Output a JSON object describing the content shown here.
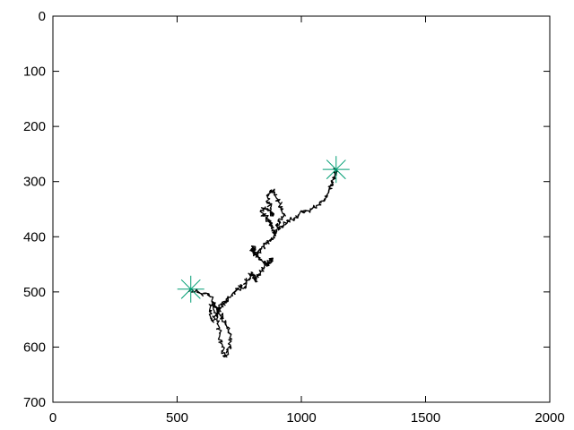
{
  "chart_data": {
    "type": "line",
    "title": "",
    "xlabel": "",
    "ylabel": "",
    "xlim": [
      0,
      2000
    ],
    "ylim": [
      0,
      700
    ],
    "y_inverted": true,
    "grid": false,
    "legend": "none",
    "x_ticks": [
      "0",
      "500",
      "1000",
      "1500",
      "2000"
    ],
    "y_ticks": [
      "0",
      "100",
      "200",
      "300",
      "400",
      "500",
      "600",
      "700"
    ],
    "series": [
      {
        "color": "#000000",
        "style": "random-walk",
        "x": [
          555,
          565,
          580,
          600,
          625,
          640,
          650,
          660,
          665,
          670,
          675,
          680,
          690,
          700,
          705,
          710,
          715,
          705,
          695,
          690,
          680,
          670,
          665,
          660,
          650,
          640,
          630,
          635,
          640,
          650,
          660,
          670,
          680,
          690,
          700,
          710,
          720,
          730,
          745,
          760,
          770,
          775,
          780,
          790,
          795,
          800,
          805,
          810,
          815,
          820,
          830,
          840,
          850,
          860,
          870,
          880,
          870,
          860,
          850,
          840,
          830,
          820,
          815,
          810,
          805,
          800,
          810,
          820,
          830,
          840,
          850,
          860,
          870,
          880,
          890,
          895,
          890,
          885,
          880,
          875,
          870,
          860,
          850,
          840,
          845,
          855,
          870,
          880,
          885,
          880,
          875,
          870,
          865,
          870,
          880,
          890,
          900,
          910,
          920,
          930,
          920,
          910,
          905,
          915,
          930,
          945,
          960,
          975,
          990,
          1005,
          1020,
          1040,
          1060,
          1080,
          1095,
          1105,
          1110,
          1115,
          1120,
          1125,
          1130,
          1135,
          1140
        ],
        "y": [
          495,
          500,
          498,
          505,
          503,
          515,
          535,
          550,
          560,
          575,
          590,
          600,
          610,
          618,
          605,
          595,
          580,
          570,
          560,
          555,
          545,
          540,
          530,
          528,
          520,
          525,
          535,
          548,
          552,
          545,
          538,
          532,
          525,
          520,
          515,
          510,
          505,
          500,
          495,
          490,
          492,
          485,
          480,
          478,
          470,
          465,
          470,
          475,
          480,
          473,
          468,
          462,
          458,
          452,
          448,
          440,
          445,
          450,
          448,
          442,
          438,
          432,
          428,
          424,
          420,
          425,
          430,
          434,
          428,
          422,
          418,
          413,
          408,
          402,
          398,
          392,
          388,
          384,
          378,
          374,
          370,
          366,
          362,
          356,
          350,
          346,
          352,
          358,
          362,
          355,
          348,
          340,
          330,
          322,
          315,
          320,
          330,
          338,
          348,
          358,
          365,
          372,
          380,
          385,
          378,
          372,
          368,
          365,
          360,
          356,
          353,
          350,
          344,
          338,
          332,
          325,
          318,
          312,
          305,
          300,
          292,
          285,
          278
        ]
      }
    ],
    "markers": [
      {
        "symbol": "asterisk",
        "color": "#009e73",
        "x": 555,
        "y": 495
      },
      {
        "symbol": "asterisk",
        "color": "#009e73",
        "x": 1140,
        "y": 278
      }
    ]
  }
}
